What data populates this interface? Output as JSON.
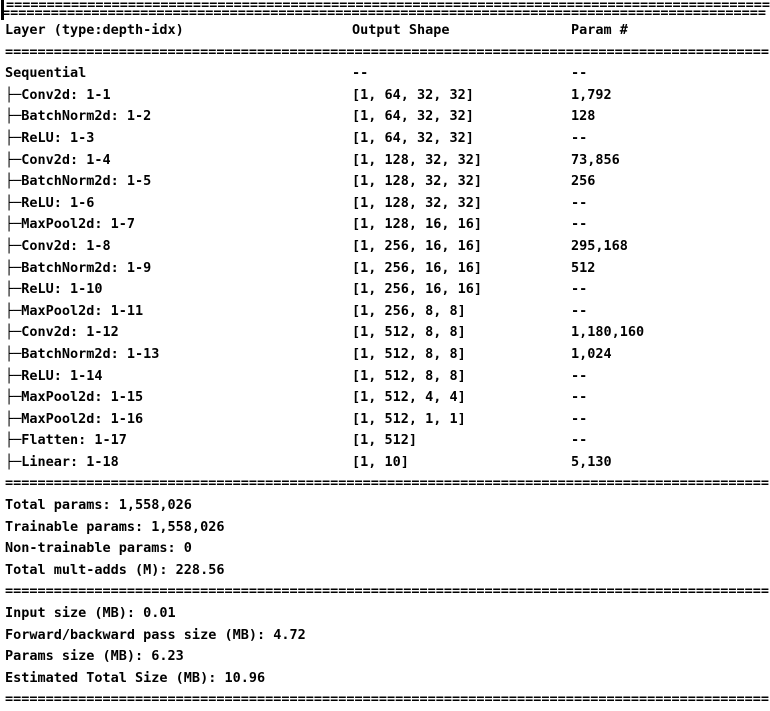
{
  "meta": {
    "background_color": "#ffffff",
    "text_color": "#000000",
    "description": "torchinfo model summary console output"
  },
  "separator": {
    "char": "=",
    "count": 94
  },
  "cursor": {
    "visible": true
  },
  "table": {
    "headers": [
      "Layer (type:depth-idx)",
      "Output Shape",
      "Param #"
    ],
    "rows": [
      {
        "layer": "Sequential",
        "output_shape": "--",
        "param_count": "--"
      },
      {
        "layer": "├─Conv2d: 1-1",
        "output_shape": "[1, 64, 32, 32]",
        "param_count": "1,792"
      },
      {
        "layer": "├─BatchNorm2d: 1-2",
        "output_shape": "[1, 64, 32, 32]",
        "param_count": "128"
      },
      {
        "layer": "├─ReLU: 1-3",
        "output_shape": "[1, 64, 32, 32]",
        "param_count": "--"
      },
      {
        "layer": "├─Conv2d: 1-4",
        "output_shape": "[1, 128, 32, 32]",
        "param_count": "73,856"
      },
      {
        "layer": "├─BatchNorm2d: 1-5",
        "output_shape": "[1, 128, 32, 32]",
        "param_count": "256"
      },
      {
        "layer": "├─ReLU: 1-6",
        "output_shape": "[1, 128, 32, 32]",
        "param_count": "--"
      },
      {
        "layer": "├─MaxPool2d: 1-7",
        "output_shape": "[1, 128, 16, 16]",
        "param_count": "--"
      },
      {
        "layer": "├─Conv2d: 1-8",
        "output_shape": "[1, 256, 16, 16]",
        "param_count": "295,168"
      },
      {
        "layer": "├─BatchNorm2d: 1-9",
        "output_shape": "[1, 256, 16, 16]",
        "param_count": "512"
      },
      {
        "layer": "├─ReLU: 1-10",
        "output_shape": "[1, 256, 16, 16]",
        "param_count": "--"
      },
      {
        "layer": "├─MaxPool2d: 1-11",
        "output_shape": "[1, 256, 8, 8]",
        "param_count": "--"
      },
      {
        "layer": "├─Conv2d: 1-12",
        "output_shape": "[1, 512, 8, 8]",
        "param_count": "1,180,160"
      },
      {
        "layer": "├─BatchNorm2d: 1-13",
        "output_shape": "[1, 512, 8, 8]",
        "param_count": "1,024"
      },
      {
        "layer": "├─ReLU: 1-14",
        "output_shape": "[1, 512, 8, 8]",
        "param_count": "--"
      },
      {
        "layer": "├─MaxPool2d: 1-15",
        "output_shape": "[1, 512, 4, 4]",
        "param_count": "--"
      },
      {
        "layer": "├─MaxPool2d: 1-16",
        "output_shape": "[1, 512, 1, 1]",
        "param_count": "--"
      },
      {
        "layer": "├─Flatten: 1-17",
        "output_shape": "[1, 512]",
        "param_count": "--"
      },
      {
        "layer": "├─Linear: 1-18",
        "output_shape": "[1, 10]",
        "param_count": "5,130"
      }
    ]
  },
  "totals": {
    "lines": [
      "Total params: 1,558,026",
      "Trainable params: 1,558,026",
      "Non-trainable params: 0",
      "Total mult-adds (M): 228.56"
    ]
  },
  "sizes": {
    "lines": [
      "Input size (MB): 0.01",
      "Forward/backward pass size (MB): 4.72",
      "Params size (MB): 6.23",
      "Estimated Total Size (MB): 10.96"
    ]
  }
}
